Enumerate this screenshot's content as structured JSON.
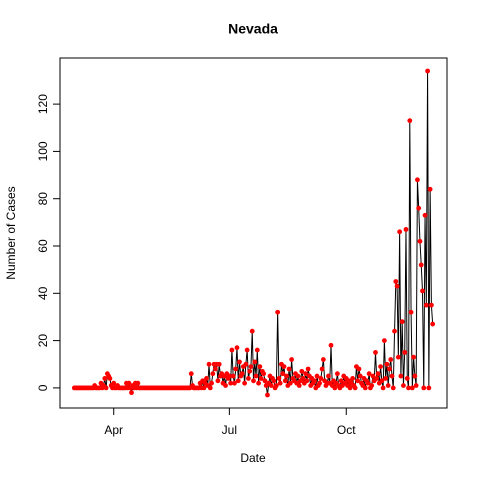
{
  "chart_data": {
    "type": "line",
    "title": "Nevada",
    "x_label": "Date",
    "y_label": "Number of Cases",
    "categories": [
      null,
      null,
      null,
      null,
      null,
      null,
      null,
      null,
      null,
      null,
      null,
      null,
      null,
      null,
      null,
      null,
      null,
      null,
      null,
      null,
      null,
      null,
      null,
      null,
      null,
      null,
      null,
      null,
      null,
      null,
      null,
      "Apr",
      null,
      null,
      null,
      null,
      null,
      null,
      null,
      null,
      null,
      null,
      null,
      null,
      null,
      null,
      null,
      null,
      null,
      null,
      null,
      null,
      null,
      null,
      null,
      null,
      null,
      null,
      null,
      null,
      null,
      null,
      null,
      null,
      null,
      null,
      null,
      null,
      null,
      null,
      null,
      null,
      null,
      null,
      null,
      null,
      null,
      null,
      null,
      null,
      null,
      null,
      null,
      null,
      null,
      null,
      null,
      null,
      null,
      null,
      null,
      null,
      null,
      null,
      null,
      null,
      null,
      null,
      null,
      null,
      null,
      null,
      null,
      null,
      null,
      null,
      null,
      null,
      null,
      null,
      null,
      null,
      null,
      null,
      null,
      null,
      null,
      null,
      null,
      null,
      null,
      null,
      "Jul",
      null,
      null,
      null,
      null,
      null,
      null,
      null,
      null,
      null,
      null,
      null,
      null,
      null,
      null,
      null,
      null,
      null,
      null,
      null,
      null,
      null,
      null,
      null,
      null,
      null,
      null,
      null,
      null,
      null,
      null,
      null,
      null,
      null,
      null,
      null,
      null,
      null,
      null,
      null,
      null,
      null,
      null,
      null,
      null,
      null,
      null,
      null,
      null,
      null,
      null,
      null,
      null,
      null,
      null,
      null,
      null,
      null,
      null,
      null,
      null,
      null,
      null,
      null,
      null,
      null,
      null,
      null,
      null,
      null,
      null,
      null,
      null,
      null,
      null,
      null,
      null,
      null,
      null,
      null,
      null,
      null,
      null,
      null,
      null,
      null,
      null,
      null,
      null,
      null,
      null,
      null,
      "Oct",
      null,
      null,
      null,
      null,
      null,
      null,
      null,
      null,
      null,
      null,
      null,
      null,
      null,
      null,
      null,
      null,
      null,
      null,
      null,
      null,
      null,
      null,
      null,
      null,
      null,
      null,
      null,
      null,
      null,
      null,
      null,
      null,
      null,
      null,
      null,
      null,
      null,
      null,
      null,
      null,
      null,
      null,
      null,
      null,
      null,
      null,
      null,
      null,
      null,
      null,
      null,
      null,
      null,
      null,
      null,
      null,
      null,
      null,
      null,
      null,
      null,
      null,
      null,
      null,
      null,
      null,
      null,
      null
    ],
    "series": [
      {
        "name": "Number of Cases",
        "line_color": "#000000",
        "color": "#ff0000",
        "values": [
          0,
          0,
          0,
          0,
          0,
          0,
          0,
          0,
          0,
          0,
          0,
          0,
          0,
          0,
          0,
          0,
          1,
          0,
          0,
          0,
          0,
          2,
          0,
          1,
          4,
          0,
          6,
          5,
          4,
          1,
          0,
          2,
          0,
          0,
          1,
          0,
          0,
          0,
          0,
          0,
          0,
          2,
          0,
          2,
          0,
          -2,
          1,
          0,
          2,
          0,
          2,
          0,
          0,
          0,
          0,
          0,
          0,
          0,
          0,
          0,
          0,
          0,
          0,
          0,
          0,
          0,
          0,
          0,
          0,
          0,
          0,
          0,
          0,
          0,
          0,
          0,
          0,
          0,
          0,
          0,
          0,
          0,
          0,
          0,
          0,
          0,
          0,
          0,
          0,
          0,
          0,
          0,
          6,
          1,
          0,
          0,
          0,
          0,
          0,
          2,
          0,
          3,
          0,
          2,
          4,
          1,
          10,
          0,
          2,
          6,
          10,
          8,
          10,
          3,
          10,
          5,
          6,
          2,
          5,
          1,
          6,
          4,
          5,
          2,
          16,
          5,
          2,
          8,
          17,
          3,
          11,
          5,
          6,
          9,
          2,
          10,
          16,
          4,
          7,
          9,
          24,
          3,
          11,
          5,
          16,
          2,
          9,
          4,
          7,
          6,
          3,
          1,
          -3,
          2,
          5,
          1,
          4,
          3,
          0,
          1,
          32,
          4,
          2,
          10,
          6,
          9,
          3,
          5,
          1,
          8,
          2,
          12,
          4,
          3,
          6,
          2,
          5,
          1,
          3,
          7,
          4,
          2,
          6,
          3,
          8,
          5,
          1,
          4,
          2,
          3,
          0,
          5,
          1,
          2,
          4,
          8,
          12,
          3,
          1,
          2,
          5,
          2,
          18,
          1,
          3,
          0,
          2,
          6,
          1,
          0,
          3,
          1,
          5,
          2,
          4,
          1,
          3,
          0,
          2,
          4,
          1,
          0,
          9,
          3,
          8,
          5,
          2,
          1,
          4,
          0,
          3,
          2,
          6,
          0,
          1,
          5,
          3,
          15,
          4,
          6,
          2,
          9,
          3,
          0,
          20,
          4,
          10,
          1,
          8,
          12,
          5,
          0,
          24,
          45,
          43,
          13,
          66,
          5,
          28,
          1,
          15,
          67,
          4,
          0,
          113,
          32,
          0,
          13,
          5,
          1,
          88,
          76,
          62,
          52,
          41,
          0,
          73,
          35,
          134,
          0,
          84,
          35,
          27
        ]
      }
    ],
    "ylim": [
      -8.5,
      139.5
    ],
    "yticks": [
      0,
      20,
      40,
      60,
      80,
      100,
      120
    ]
  }
}
